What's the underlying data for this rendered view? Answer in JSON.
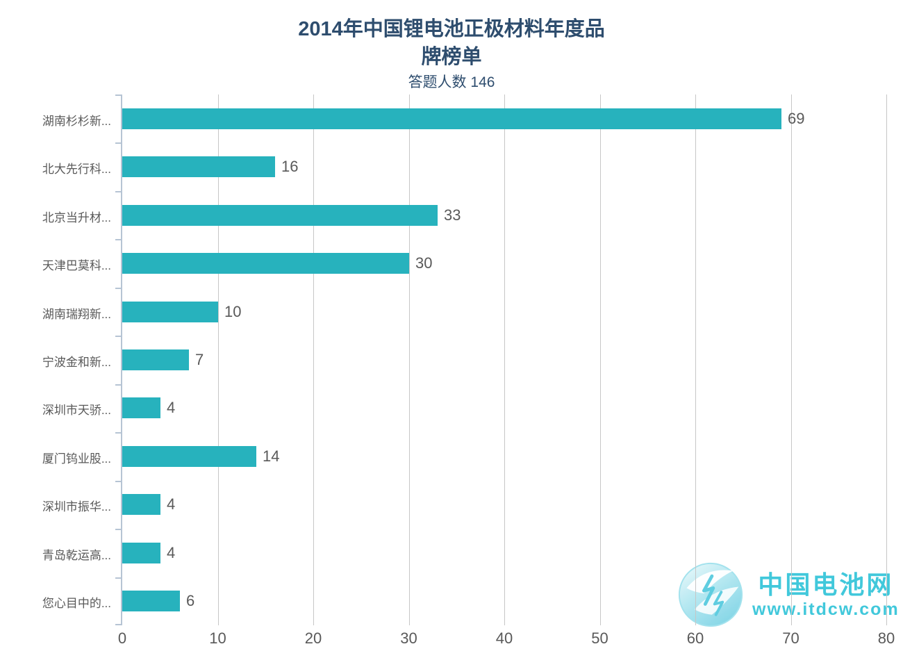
{
  "title": {
    "line1": "2014年中国锂电池正极材料年度品",
    "line2": "牌榜单",
    "subtitle": "答题人数 146"
  },
  "chart_data": {
    "type": "bar",
    "orientation": "horizontal",
    "title": "2014年中国锂电池正极材料年度品牌榜单",
    "subtitle": "答题人数 146",
    "categories": [
      "湖南杉杉新...",
      "北大先行科...",
      "北京当升材...",
      "天津巴莫科...",
      "湖南瑞翔新...",
      "宁波金和新...",
      "深圳市天骄...",
      "厦门钨业股...",
      "深圳市振华...",
      "青岛乾运高...",
      "您心目中的..."
    ],
    "values": [
      69,
      16,
      33,
      30,
      10,
      7,
      4,
      14,
      4,
      4,
      6
    ],
    "xlabel": "",
    "ylabel": "",
    "xlim": [
      0,
      80
    ],
    "xticks": [
      0,
      10,
      20,
      30,
      40,
      50,
      60,
      70,
      80
    ],
    "grid": true,
    "legend": false,
    "value_labels": true,
    "bar_color": "#27b2bd"
  },
  "watermark": {
    "site_name": "中国电池网",
    "site_url": "www.itdcw.com"
  },
  "colors": {
    "title_text": "#2e4d6e",
    "bar": "#27b2bd",
    "axis_line": "#b6c4d4",
    "gridline": "#c6c6c6",
    "label_text": "#595959",
    "watermark_cyan": "#41c8db"
  }
}
